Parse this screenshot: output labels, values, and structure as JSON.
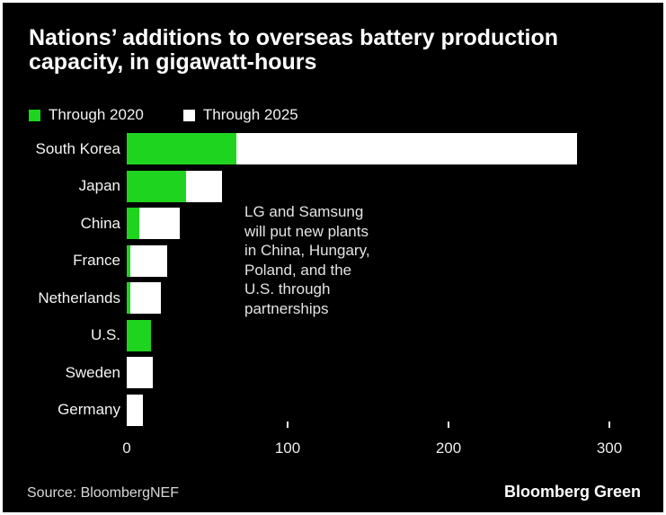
{
  "footer": {
    "source": "Source: BloombergNEF",
    "brand": "Bloomberg Green"
  },
  "colors": {
    "background": "#000000",
    "bar_green": "#1fd41f",
    "bar_white": "#ffffff",
    "text": "#ffffff"
  },
  "legend": [
    {
      "label": "Through 2020",
      "color": "#1fd41f"
    },
    {
      "label": "Through 2025",
      "color": "#ffffff"
    }
  ],
  "chart_data": {
    "type": "bar",
    "orientation": "horizontal",
    "title": "Nations’ additions to overseas battery production\ncapacity, in gigawatt-hours",
    "categories": [
      "South Korea",
      "Japan",
      "China",
      "France",
      "Netherlands",
      "U.S.",
      "Sweden",
      "Germany"
    ],
    "series": [
      {
        "name": "Through 2020",
        "color": "#1fd41f",
        "values": [
          68,
          37,
          8,
          2,
          2,
          15,
          0,
          0
        ]
      },
      {
        "name": "Through 2025",
        "color": "#ffffff",
        "values": [
          280,
          59,
          33,
          25,
          21,
          15,
          16,
          10
        ]
      }
    ],
    "xlabel": "",
    "ylabel": "",
    "xlim": [
      0,
      300
    ],
    "x_ticks": [
      0,
      100,
      200,
      300
    ],
    "x_tick_marks": [
      100,
      200,
      300
    ],
    "grid": false,
    "legend_position": "top-left",
    "annotation": "LG and Samsung\nwill put new plants\nin China, Hungary,\nPoland, and the\nU.S. through\npartnerships"
  }
}
